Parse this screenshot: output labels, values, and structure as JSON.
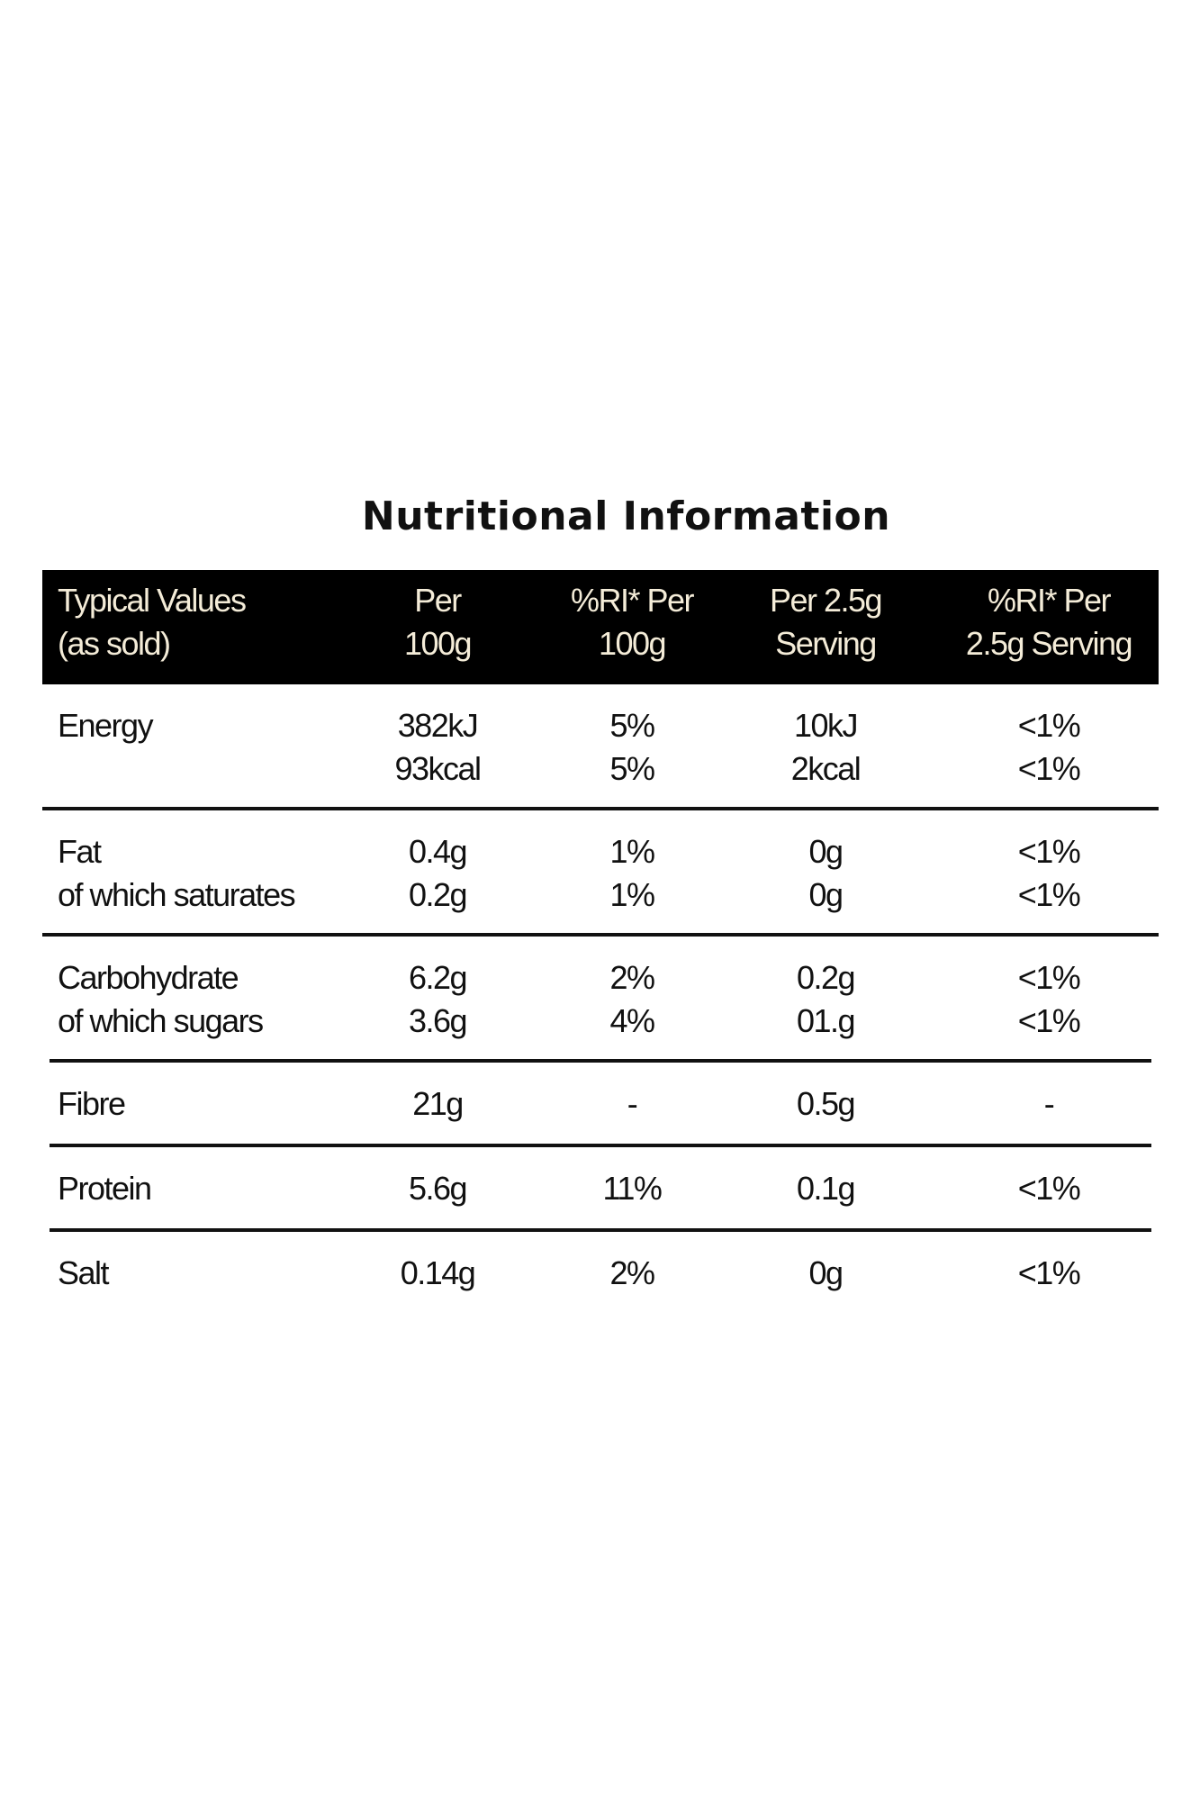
{
  "title": "Nutritional Information",
  "colors": {
    "header_bg": "#000000",
    "header_text": "#f4ecd8",
    "text": "#111111",
    "rule": "#111111"
  },
  "header": [
    [
      "Typical Values",
      "(as sold)"
    ],
    [
      "Per",
      "100g"
    ],
    [
      "%RI* Per",
      "100g"
    ],
    [
      "Per 2.5g",
      "Serving"
    ],
    [
      "%RI* Per",
      "2.5g Serving"
    ]
  ],
  "rows": [
    {
      "nutrient": [
        "Energy"
      ],
      "per_100g": [
        "382kJ",
        "93kcal"
      ],
      "ri_per_100g": [
        "5%",
        "5%"
      ],
      "per_serving": [
        "10kJ",
        "2kcal"
      ],
      "ri_per_serving": [
        "<1%",
        "<1%"
      ]
    },
    {
      "nutrient": [
        "Fat",
        "of which saturates"
      ],
      "per_100g": [
        "0.4g",
        "0.2g"
      ],
      "ri_per_100g": [
        "1%",
        "1%"
      ],
      "per_serving": [
        "0g",
        "0g"
      ],
      "ri_per_serving": [
        "<1%",
        "<1%"
      ]
    },
    {
      "nutrient": [
        "Carbohydrate",
        "of which sugars"
      ],
      "per_100g": [
        "6.2g",
        "3.6g"
      ],
      "ri_per_100g": [
        "2%",
        "4%"
      ],
      "per_serving": [
        "0.2g",
        "01.g"
      ],
      "ri_per_serving": [
        "<1%",
        "<1%"
      ]
    },
    {
      "nutrient": [
        "Fibre"
      ],
      "per_100g": [
        "21g"
      ],
      "ri_per_100g": [
        "-"
      ],
      "per_serving": [
        "0.5g"
      ],
      "ri_per_serving": [
        "-"
      ]
    },
    {
      "nutrient": [
        "Protein"
      ],
      "per_100g": [
        "5.6g"
      ],
      "ri_per_100g": [
        "11%"
      ],
      "per_serving": [
        "0.1g"
      ],
      "ri_per_serving": [
        "<1%"
      ]
    },
    {
      "nutrient": [
        "Salt"
      ],
      "per_100g": [
        "0.14g"
      ],
      "ri_per_100g": [
        "2%"
      ],
      "per_serving": [
        "0g"
      ],
      "ri_per_serving": [
        "<1%"
      ]
    }
  ]
}
